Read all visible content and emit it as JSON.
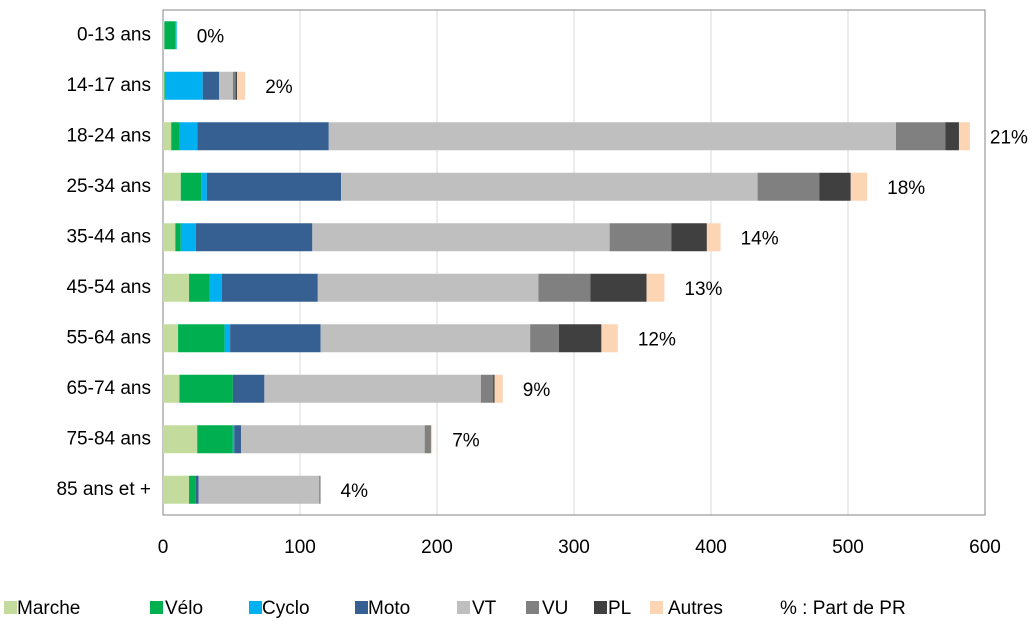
{
  "chart_data": {
    "type": "stacked_barh",
    "categories": [
      "0-13 ans",
      "14-17 ans",
      "18-24 ans",
      "25-34 ans",
      "35-44 ans",
      "45-54 ans",
      "55-64 ans",
      "65-74 ans",
      "75-84 ans",
      "85 ans et +"
    ],
    "series": [
      {
        "name": "Marche",
        "color": "#c3dc9e",
        "values": [
          1,
          1,
          6,
          13,
          9,
          19,
          11,
          12,
          25,
          19
        ]
      },
      {
        "name": "Vélo",
        "color": "#00b050",
        "values": [
          8,
          1,
          6,
          15,
          4,
          15,
          34,
          39,
          26,
          5
        ]
      },
      {
        "name": "Cyclo",
        "color": "#00b0f0",
        "values": [
          1,
          27,
          13,
          4,
          11,
          9,
          4,
          0,
          1,
          0
        ]
      },
      {
        "name": "Moto",
        "color": "#376092",
        "values": [
          0,
          12,
          96,
          98,
          85,
          70,
          66,
          23,
          5,
          2
        ]
      },
      {
        "name": "VT",
        "color": "#bfbfbf",
        "values": [
          0,
          10,
          414,
          304,
          217,
          161,
          153,
          158,
          134,
          88
        ]
      },
      {
        "name": "VU",
        "color": "#808080",
        "values": [
          0,
          2,
          36,
          45,
          45,
          38,
          21,
          9,
          4,
          1
        ]
      },
      {
        "name": "PL",
        "color": "#404040",
        "values": [
          0,
          1,
          10,
          23,
          26,
          41,
          31,
          1,
          0.5,
          0
        ]
      },
      {
        "name": "Autres",
        "color": "#fcd5b5",
        "values": [
          0,
          6,
          8,
          12,
          10,
          13,
          12,
          6,
          1,
          0
        ]
      }
    ],
    "bar_labels": [
      "0%",
      "2%",
      "21%",
      "18%",
      "14%",
      "13%",
      "12%",
      "9%",
      "7%",
      "4%"
    ],
    "legend_note": "% : Part de PR",
    "xlim": [
      0,
      600
    ],
    "xticks": [
      0,
      100,
      200,
      300,
      400,
      500,
      600
    ],
    "grid": true
  }
}
